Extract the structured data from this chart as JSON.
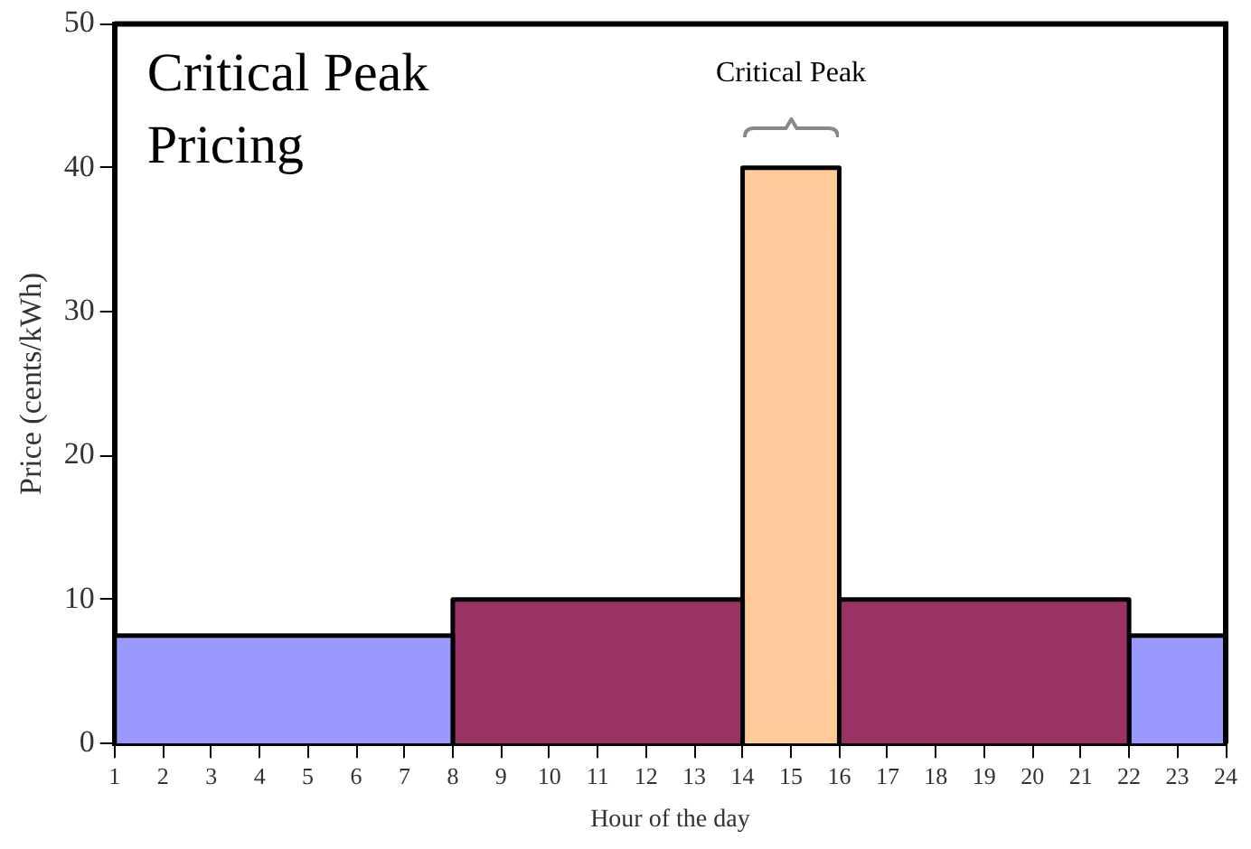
{
  "chart_data": {
    "type": "histogram",
    "title": "Critical Peak\nPricing",
    "xlabel": "Hour of the day",
    "ylabel": "Price (cents/kWh)",
    "bins": [
      1,
      8,
      14,
      16,
      22,
      24
    ],
    "values": [
      7.5,
      10,
      40,
      10,
      7.5
    ],
    "colors": [
      "#9999ff",
      "#993366",
      "#ffcc99",
      "#993366",
      "#9999ff"
    ],
    "xlim": [
      1,
      24
    ],
    "xticks": [
      1,
      2,
      3,
      4,
      5,
      6,
      7,
      8,
      9,
      10,
      11,
      12,
      13,
      14,
      15,
      16,
      17,
      18,
      19,
      20,
      21,
      22,
      23,
      24
    ],
    "ylim": [
      0,
      50
    ],
    "yticks": [
      0,
      10,
      20,
      30,
      40,
      50
    ],
    "annotations": [
      "Critical Peak"
    ],
    "grid": false,
    "legend": false
  }
}
